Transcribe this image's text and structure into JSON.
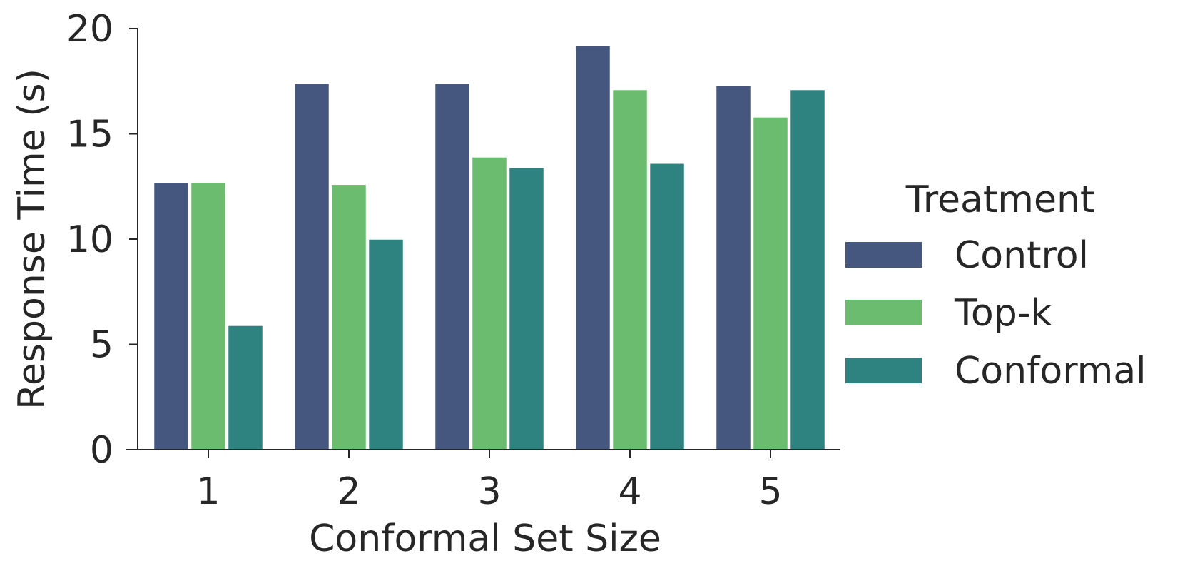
{
  "chart_data": {
    "type": "bar",
    "title": "",
    "xlabel": "Conformal Set Size",
    "ylabel": "Response Time (s)",
    "categories": [
      "1",
      "2",
      "3",
      "4",
      "5"
    ],
    "series": [
      {
        "name": "Control",
        "color": "#46577f",
        "values": [
          12.7,
          17.4,
          17.4,
          19.2,
          17.3
        ]
      },
      {
        "name": "Top-k",
        "color": "#6bbc6f",
        "values": [
          12.7,
          12.6,
          13.9,
          17.1,
          15.8
        ]
      },
      {
        "name": "Conformal",
        "color": "#2e8280",
        "values": [
          5.9,
          10.0,
          13.4,
          13.6,
          17.1
        ]
      }
    ],
    "ylim": [
      0,
      20
    ],
    "yticks": [
      "0",
      "5",
      "10",
      "15",
      "20"
    ],
    "grid": false,
    "legend": {
      "title": "Treatment",
      "placement": "right"
    }
  }
}
